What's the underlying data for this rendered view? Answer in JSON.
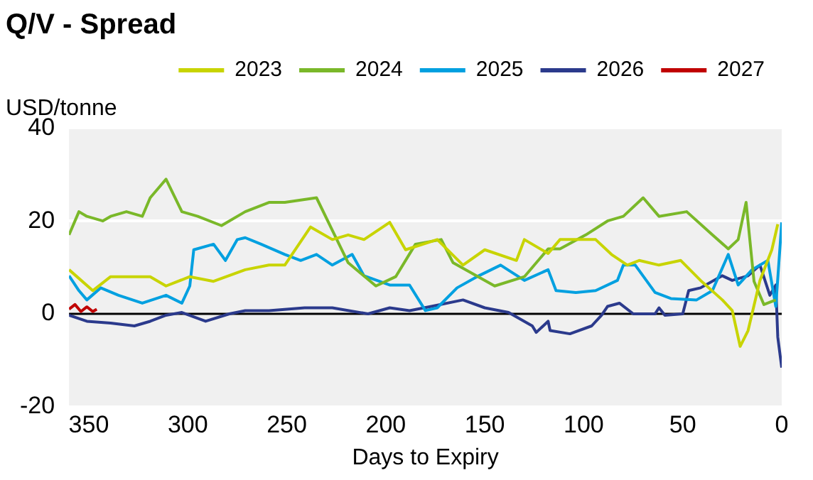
{
  "chart_data": {
    "type": "line",
    "title": "Q/V - Spread",
    "ylabel": "USD/tonne",
    "xlabel": "Days to Expiry",
    "xlim": [
      360,
      0
    ],
    "xticks": [
      350,
      300,
      250,
      200,
      150,
      100,
      50,
      0
    ],
    "ylim": [
      -20,
      40
    ],
    "yticks": [
      -20,
      0,
      20,
      40
    ],
    "grid": "y",
    "legend": "top right",
    "marker": "none",
    "line_style": "solid",
    "ref_lines": [
      {
        "axis": "y",
        "value": 0,
        "color": "#000000"
      }
    ],
    "series": [
      {
        "name": "2023",
        "color": "#c8d400",
        "x": [
          360,
          348,
          339,
          319,
          311,
          299,
          287,
          271,
          259,
          251,
          238,
          227,
          219,
          211,
          198,
          190,
          174,
          161,
          150,
          134,
          130,
          118,
          112,
          94,
          86,
          78,
          72,
          62,
          51,
          41,
          30,
          25,
          21,
          17,
          11,
          5,
          2
        ],
        "values": [
          9.5,
          5,
          8,
          8,
          6,
          8,
          7,
          9.5,
          10.5,
          10.5,
          18.7,
          16,
          17,
          16,
          19.7,
          13.8,
          16,
          10.5,
          13.8,
          11.5,
          16,
          13,
          16,
          16,
          12.8,
          10.5,
          11.5,
          10.5,
          11.5,
          7.2,
          3,
          0.7,
          -7,
          -3.6,
          7.2,
          13.8,
          19.3
        ]
      },
      {
        "name": "2024",
        "color": "#7ab829",
        "x": [
          360,
          355,
          351,
          343,
          339,
          331,
          323,
          319,
          311,
          303,
          295,
          283,
          271,
          259,
          251,
          235,
          227,
          219,
          205,
          195,
          185,
          172,
          166,
          145,
          130,
          118,
          112,
          99,
          88,
          80,
          70,
          62,
          48,
          35,
          27,
          22,
          18,
          14,
          9,
          3
        ],
        "values": [
          17,
          22,
          21,
          20,
          21,
          22,
          21,
          25,
          29,
          22,
          21,
          19,
          22,
          24,
          24,
          25,
          18,
          11,
          6,
          8,
          15,
          16,
          11,
          6,
          8,
          14,
          14,
          17,
          20,
          21,
          25,
          21,
          22,
          17,
          14,
          16,
          24,
          7,
          2,
          3
        ]
      },
      {
        "name": "2025",
        "color": "#00a0e0",
        "x": [
          360,
          355,
          351,
          344,
          335,
          323,
          311,
          303,
          299,
          297,
          287,
          281,
          275,
          271,
          263,
          251,
          243,
          235,
          227,
          217,
          211,
          198,
          188,
          180,
          174,
          164,
          153,
          142,
          130,
          118,
          114,
          104,
          94,
          83,
          80,
          74,
          64,
          56,
          43,
          35,
          27,
          22,
          15,
          7,
          3,
          0
        ],
        "values": [
          8.2,
          5,
          3,
          5.6,
          4,
          2.3,
          4,
          2.3,
          6,
          13.8,
          15,
          11.5,
          16,
          16.4,
          15,
          12.8,
          11.5,
          12.8,
          10.5,
          12.8,
          8.2,
          6.2,
          6.2,
          0.7,
          1.3,
          5.6,
          8.2,
          10.5,
          7.2,
          9.5,
          5,
          4.6,
          5,
          7.2,
          10.5,
          10.5,
          4.6,
          3.3,
          3,
          5,
          12.8,
          6.2,
          9.5,
          11.5,
          1.6,
          19.7
        ]
      },
      {
        "name": "2026",
        "color": "#2b3a8c",
        "x": [
          360,
          351,
          339,
          327,
          319,
          311,
          303,
          291,
          279,
          271,
          259,
          241,
          227,
          209,
          198,
          188,
          177,
          161,
          150,
          138,
          126,
          124,
          118,
          117,
          107,
          96,
          91,
          88,
          82,
          75,
          64,
          62,
          59,
          50,
          47,
          41,
          30,
          25,
          17,
          11,
          6,
          3,
          2,
          0
        ],
        "values": [
          -0.3,
          -1.6,
          -2,
          -2.6,
          -1.6,
          -0.3,
          0.3,
          -1.6,
          0,
          0.7,
          0.7,
          1.3,
          1.3,
          0,
          1.3,
          0.7,
          1.6,
          3,
          1.3,
          0.3,
          -2.6,
          -4,
          -1.6,
          -3.6,
          -4.3,
          -2.6,
          -0.3,
          1.6,
          2.3,
          0,
          0,
          1.3,
          -0.3,
          0,
          5,
          5.6,
          8.2,
          7.2,
          8.2,
          10.5,
          4,
          6.2,
          -5,
          -11.6
        ]
      },
      {
        "name": "2027",
        "color": "#c00000",
        "x": [
          360,
          357,
          354,
          351,
          348,
          346
        ],
        "values": [
          1,
          2,
          0.5,
          1.5,
          0.5,
          1
        ]
      }
    ]
  }
}
